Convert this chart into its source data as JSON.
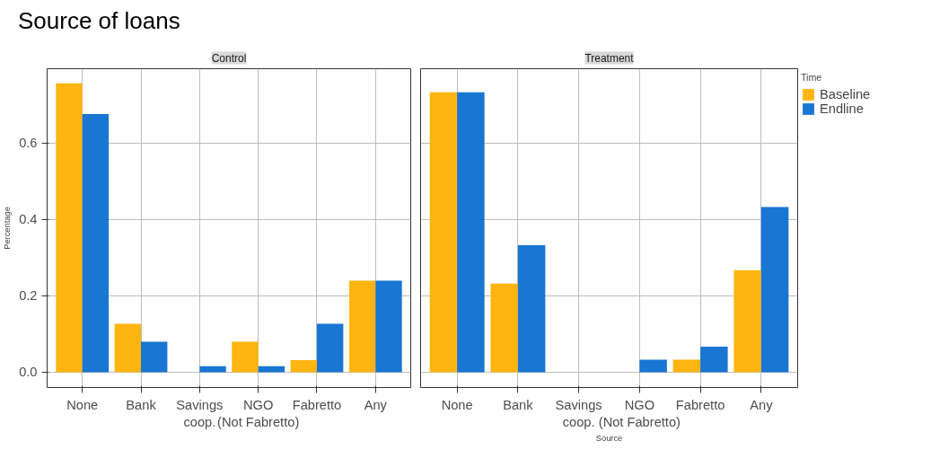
{
  "chart_data": [
    {
      "type": "bar",
      "title": "Source of loans",
      "subtitle": "Control",
      "ylabel": "Percentage",
      "categories": [
        "None",
        "Bank",
        "Savings\ncoop.",
        "NGO\n(Not Fabretto)",
        "Fabretto",
        "Any"
      ],
      "series": [
        {
          "color": "#ffb511",
          "values": [
            0.757,
            0.127,
            0,
            0.08,
            0.032,
            0.24
          ]
        },
        {
          "color": "#1976d2",
          "values": [
            0.676,
            0.08,
            0.016,
            0.016,
            0.127,
            0.24
          ]
        }
      ],
      "ylim": [
        -0.04,
        0.795
      ],
      "yticks": [
        {
          "value": 0,
          "label": "0.0"
        },
        {
          "value": 0.2,
          "label": "0.2"
        },
        {
          "value": 0.4,
          "label": "0.4"
        },
        {
          "value": 0.6,
          "label": "0.6"
        }
      ],
      "grid": true
    },
    {
      "type": "bar",
      "title": "Treatment",
      "xlabel": "Source",
      "categories": [
        "None",
        "Bank",
        "Savings\ncoop.",
        "NGO\n(Not Fabretto)",
        "Fabretto",
        "Any"
      ],
      "series": [
        {
          "name": "Baseline",
          "color": "#ffb511",
          "values": [
            0.733,
            0.232,
            0,
            0,
            0.033,
            0.267
          ]
        },
        {
          "name": "Endline",
          "color": "#1976d2",
          "values": [
            0.733,
            0.333,
            0,
            0.033,
            0.067,
            0.433
          ]
        }
      ],
      "ylim": [
        -0.04,
        0.795
      ],
      "yticks": [
        0,
        0.2,
        0.4,
        0.6
      ],
      "grid": true,
      "tick_labels": "x",
      "legend": "right",
      "legend_title": "Time"
    }
  ]
}
